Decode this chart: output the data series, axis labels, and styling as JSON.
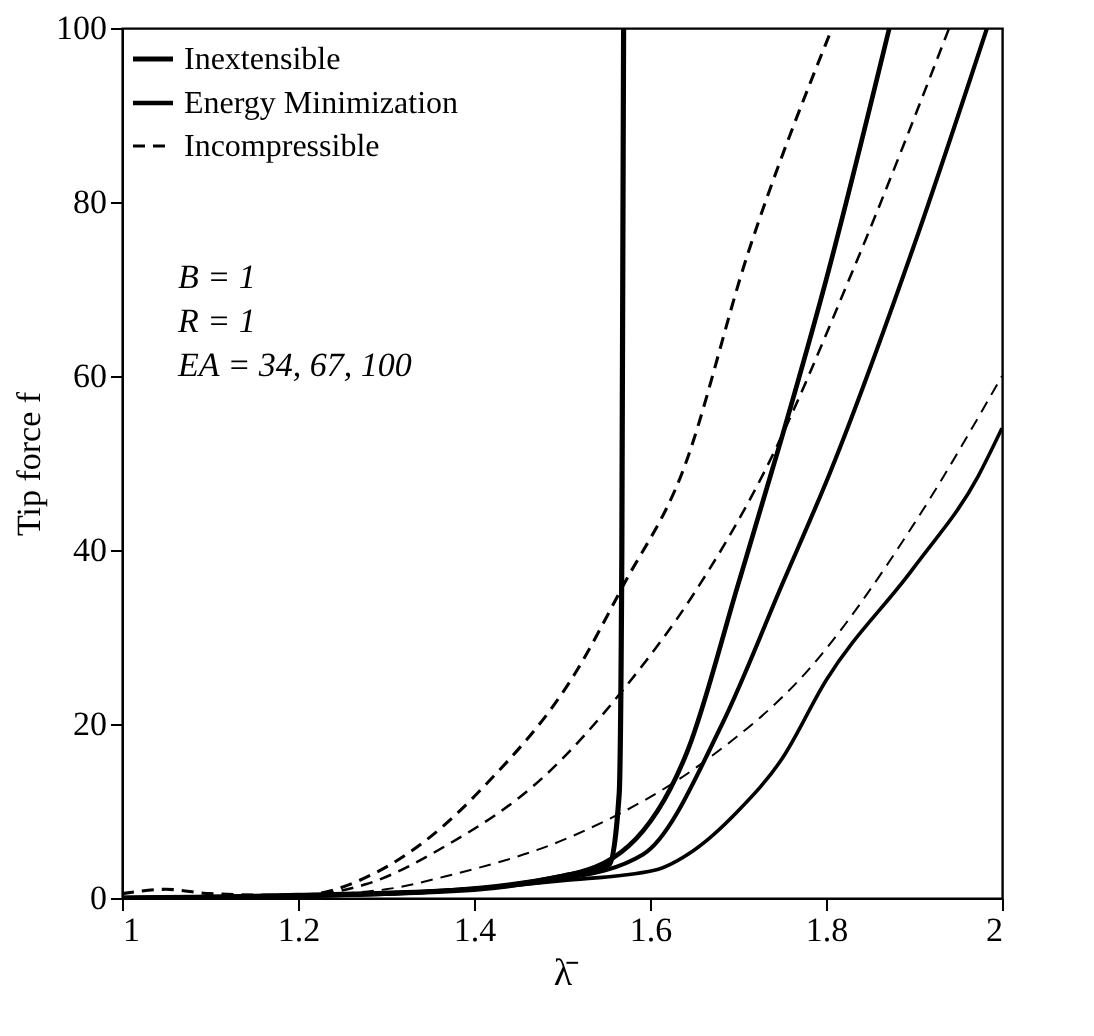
{
  "chart_data": {
    "type": "line",
    "xlabel": "λ̄",
    "ylabel": "Tip force f",
    "xlim": [
      1,
      2
    ],
    "ylim": [
      0,
      100
    ],
    "xticks": [
      1,
      1.2,
      1.4,
      1.6,
      1.8,
      2
    ],
    "yticks": [
      0,
      20,
      40,
      60,
      80,
      100
    ],
    "grid": false,
    "legend": "top left",
    "annotations": [
      "B = 1",
      "R = 1",
      "EA = 34, 67, 100"
    ],
    "series": [
      {
        "name": "Inextensible",
        "color": "#000000",
        "line_style": "solid",
        "x": [
          1,
          1.2,
          1.4,
          1.5,
          1.554,
          1.565,
          1.568,
          1.57
        ],
        "values": [
          0,
          0.3,
          1,
          2.5,
          3.9,
          12,
          40,
          100
        ]
      },
      {
        "name": "Energy Minimization",
        "color": "#000000",
        "line_style": "solid",
        "x": [
          1,
          1.3,
          1.5,
          1.576,
          1.643,
          1.7,
          1.75,
          1.8,
          1.872
        ],
        "values": [
          0,
          0.5,
          2.5,
          6,
          17,
          36,
          53,
          71,
          100
        ]
      },
      {
        "color": "#000000",
        "line_style": "solid",
        "x": [
          1,
          1.3,
          1.5,
          1.592,
          1.682,
          1.75,
          1.805,
          1.9,
          1.983
        ],
        "values": [
          0,
          0.5,
          2.2,
          5,
          20,
          36,
          49,
          75,
          100
        ]
      },
      {
        "color": "#000000",
        "line_style": "solid",
        "x": [
          1,
          1.3,
          1.5,
          1.605,
          1.65,
          1.7,
          1.75,
          1.8,
          1.9,
          1.973,
          2
        ],
        "values": [
          0,
          0.5,
          2,
          3.2,
          5.5,
          10,
          16,
          25,
          38,
          48.5,
          54
        ]
      },
      {
        "name": "Incompressible",
        "color": "#000000",
        "line_style": "dashed",
        "x": [
          1,
          1.05,
          1.1,
          1.2,
          1.29,
          1.35,
          1.413,
          1.516,
          1.57,
          1.637,
          1.711,
          1.807
        ],
        "values": [
          0.5,
          1,
          0.5,
          0.3,
          3,
          7,
          13,
          26,
          36,
          49,
          74,
          100
        ]
      },
      {
        "color": "#000000",
        "line_style": "dashed",
        "x": [
          1,
          1.2,
          1.278,
          1.368,
          1.48,
          1.57,
          1.65,
          1.73,
          1.83,
          1.94
        ],
        "values": [
          0,
          0.3,
          1.6,
          6,
          14,
          24,
          35,
          49,
          72,
          100
        ]
      },
      {
        "color": "#000000",
        "line_style": "dashed",
        "x": [
          1,
          1.2,
          1.3,
          1.368,
          1.516,
          1.666,
          1.778,
          1.9,
          2
        ],
        "values": [
          0,
          0.3,
          1,
          2.5,
          7.3,
          16,
          26,
          43,
          60
        ]
      }
    ]
  }
}
